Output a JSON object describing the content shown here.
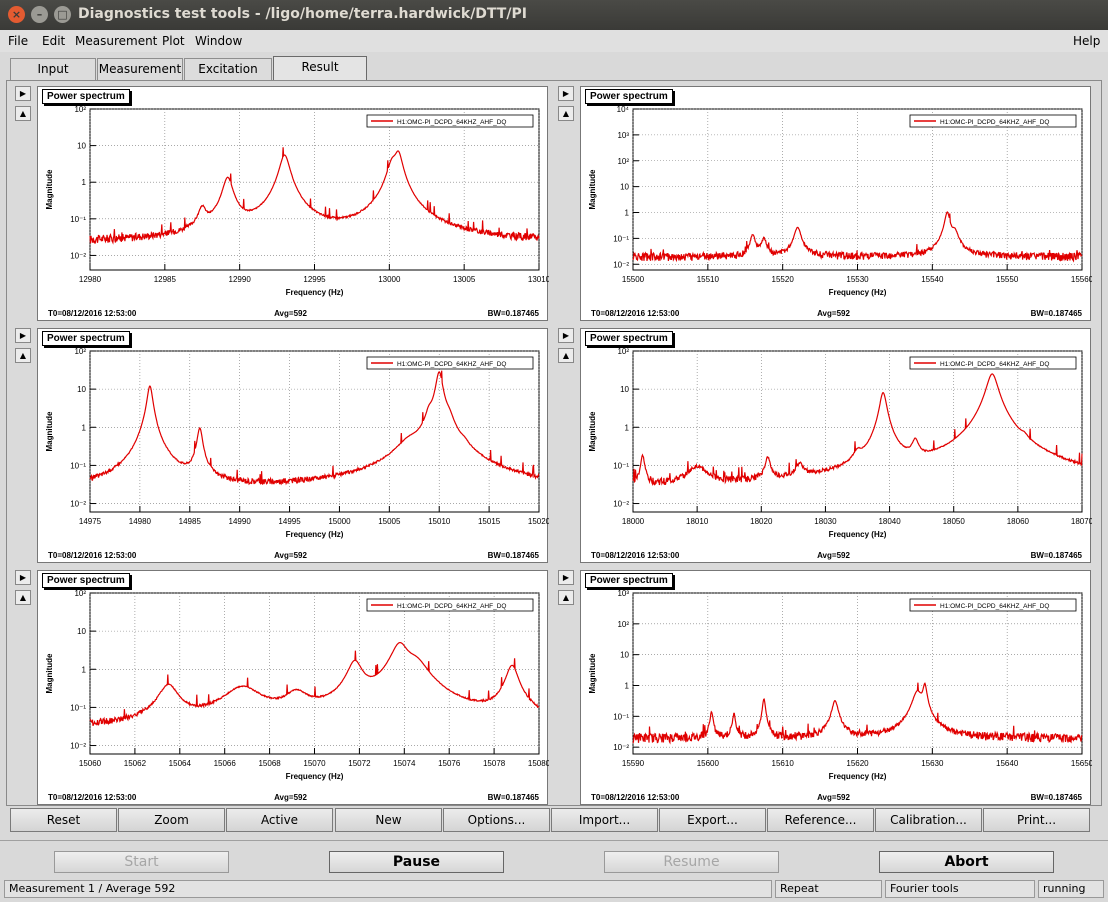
{
  "window": {
    "title": "Diagnostics test tools - /ligo/home/terra.hardwick/DTT/PI"
  },
  "menu": [
    "File",
    "Edit",
    "Measurement",
    "Plot",
    "Window",
    "Help"
  ],
  "tabs": [
    "Input",
    "Measurement",
    "Excitation",
    "Result"
  ],
  "panel_title": "Power spectrum",
  "axes": {
    "xlabel": "Frequency (Hz)",
    "ylabel": "Magnitude"
  },
  "legend_label": "H1:OMC-PI_DCPD_64KHZ_AHF_DQ",
  "footer": {
    "t0": "T0=08/12/2016 12:53:00",
    "avg": "Avg=592",
    "bw": "BW=0.187465"
  },
  "buttons": [
    "Reset",
    "Zoom",
    "Active",
    "New",
    "Options...",
    "Import...",
    "Export...",
    "Reference...",
    "Calibration...",
    "Print..."
  ],
  "controls": {
    "start": "Start",
    "pause": "Pause",
    "resume": "Resume",
    "abort": "Abort"
  },
  "status": {
    "measurement": "Measurement 1 / Average 592",
    "repeat": "Repeat",
    "tools": "Fourier tools",
    "state": "running"
  },
  "colors": {
    "trace": "#e00000",
    "window_bg": "#d9d9d9"
  },
  "chart_data": [
    {
      "type": "line",
      "title": "Power spectrum",
      "xlabel": "Frequency (Hz)",
      "ylabel": "Magnitude",
      "log_y": true,
      "xlim": [
        12980,
        13010
      ],
      "ylim": [
        0.004,
        100
      ],
      "x_ticks": [
        12980,
        12985,
        12990,
        12995,
        13000,
        13005,
        13010
      ],
      "y_ticks": [
        0.01,
        0.1,
        1,
        10,
        100
      ],
      "base": 0.022,
      "peaks": [
        [
          12987.5,
          0.15,
          0.25
        ],
        [
          12989.2,
          1.3,
          0.3
        ],
        [
          12993.0,
          5.5,
          0.3
        ],
        [
          13000.2,
          3.0,
          0.3
        ],
        [
          13000.6,
          6.0,
          0.25
        ]
      ],
      "series": [
        {
          "name": "H1:OMC-PI_DCPD_64KHZ_AHF_DQ"
        }
      ]
    },
    {
      "type": "line",
      "title": "Power spectrum",
      "xlabel": "Frequency (Hz)",
      "ylabel": "Magnitude",
      "log_y": true,
      "xlim": [
        15500,
        15560
      ],
      "ylim": [
        0.006,
        10000
      ],
      "x_ticks": [
        15500,
        15510,
        15520,
        15530,
        15540,
        15550,
        15560
      ],
      "y_ticks": [
        0.01,
        0.1,
        1,
        10,
        100,
        1000,
        10000
      ],
      "base": 0.02,
      "peaks": [
        [
          15516,
          0.12,
          0.3
        ],
        [
          15517.5,
          0.08,
          0.3
        ],
        [
          15522,
          0.25,
          0.4
        ],
        [
          15542,
          1.0,
          0.3
        ],
        [
          15543,
          0.15,
          0.4
        ]
      ],
      "series": [
        {
          "name": "H1:OMC-PI_DCPD_64KHZ_AHF_DQ"
        }
      ]
    },
    {
      "type": "line",
      "title": "Power spectrum",
      "xlabel": "Frequency (Hz)",
      "ylabel": "Magnitude",
      "log_y": true,
      "xlim": [
        14975,
        15020
      ],
      "ylim": [
        0.006,
        100
      ],
      "x_ticks": [
        14975,
        14980,
        14985,
        14990,
        14995,
        15000,
        15005,
        15010,
        15015,
        15020
      ],
      "y_ticks": [
        0.01,
        0.1,
        1,
        10,
        100
      ],
      "base": 0.02,
      "peaks": [
        [
          14980.4,
          0.15,
          0.6
        ],
        [
          14981.0,
          12,
          0.25
        ],
        [
          14986.0,
          0.9,
          0.25
        ],
        [
          15007.0,
          0.25,
          1.2
        ],
        [
          15009.0,
          1.5,
          0.35
        ],
        [
          15010.0,
          28,
          0.3
        ],
        [
          15011.0,
          0.9,
          0.4
        ],
        [
          15012.5,
          0.08,
          0.4
        ]
      ],
      "series": [
        {
          "name": "H1:OMC-PI_DCPD_64KHZ_AHF_DQ"
        }
      ]
    },
    {
      "type": "line",
      "title": "Power spectrum",
      "xlabel": "Frequency (Hz)",
      "ylabel": "Magnitude",
      "log_y": true,
      "xlim": [
        18000,
        18070
      ],
      "ylim": [
        0.006,
        100
      ],
      "x_ticks": [
        18000,
        18010,
        18020,
        18030,
        18040,
        18050,
        18060,
        18070
      ],
      "y_ticks": [
        0.01,
        0.1,
        1,
        10,
        100
      ],
      "base": 0.025,
      "peaks": [
        [
          18001.5,
          0.15,
          0.3
        ],
        [
          18010,
          0.06,
          1.5
        ],
        [
          18021,
          0.12,
          0.4
        ],
        [
          18026,
          0.06,
          0.6
        ],
        [
          18035,
          0.1,
          0.6
        ],
        [
          18039,
          8,
          0.5
        ],
        [
          18044,
          0.3,
          0.5
        ],
        [
          18056,
          25,
          0.8
        ],
        [
          18061,
          0.12,
          0.5
        ]
      ],
      "series": [
        {
          "name": "H1:OMC-PI_DCPD_64KHZ_AHF_DQ"
        }
      ]
    },
    {
      "type": "line",
      "title": "Power spectrum",
      "xlabel": "Frequency (Hz)",
      "ylabel": "Magnitude",
      "log_y": true,
      "xlim": [
        15060,
        15080
      ],
      "ylim": [
        0.006,
        100
      ],
      "x_ticks": [
        15060,
        15062,
        15064,
        15066,
        15068,
        15070,
        15072,
        15074,
        15076,
        15078,
        15080
      ],
      "y_ticks": [
        0.01,
        0.1,
        1,
        10,
        100
      ],
      "base": 0.025,
      "peaks": [
        [
          15063.5,
          0.35,
          0.4
        ],
        [
          15066.8,
          0.3,
          0.8
        ],
        [
          15069.2,
          0.18,
          0.5
        ],
        [
          15071.8,
          1.5,
          0.3
        ],
        [
          15073.8,
          4.5,
          0.35
        ],
        [
          15074.5,
          1.3,
          0.5
        ],
        [
          15078.8,
          1.2,
          0.25
        ]
      ],
      "series": [
        {
          "name": "H1:OMC-PI_DCPD_64KHZ_AHF_DQ"
        }
      ]
    },
    {
      "type": "line",
      "title": "Power spectrum",
      "xlabel": "Frequency (Hz)",
      "ylabel": "Magnitude",
      "log_y": true,
      "xlim": [
        15590,
        15650
      ],
      "ylim": [
        0.006,
        1000
      ],
      "x_ticks": [
        15590,
        15600,
        15610,
        15620,
        15630,
        15640,
        15650
      ],
      "y_ticks": [
        0.01,
        0.1,
        1,
        10,
        100,
        1000
      ],
      "base": 0.02,
      "peaks": [
        [
          15600.5,
          0.12,
          0.2
        ],
        [
          15603.5,
          0.1,
          0.2
        ],
        [
          15607.5,
          0.35,
          0.2
        ],
        [
          15617,
          0.3,
          0.4
        ],
        [
          15628,
          0.6,
          0.6
        ],
        [
          15629,
          1.0,
          0.25
        ]
      ],
      "series": [
        {
          "name": "H1:OMC-PI_DCPD_64KHZ_AHF_DQ"
        }
      ]
    }
  ]
}
